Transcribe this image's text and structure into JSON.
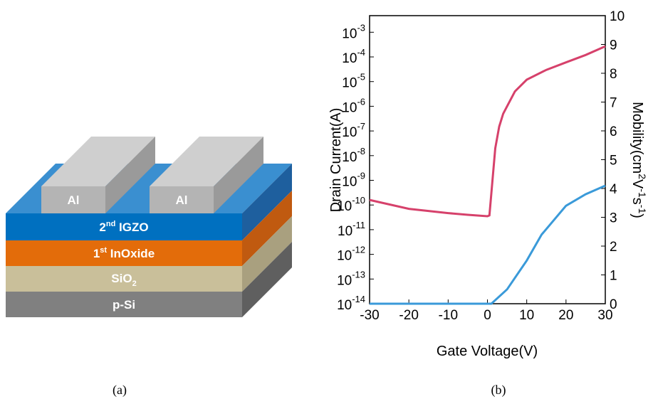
{
  "figure_a": {
    "caption": "(a)",
    "electrodes": [
      "Al",
      "Al"
    ],
    "layers": [
      {
        "main": "2",
        "sup": "nd",
        "rest": " IGZO"
      },
      {
        "main": "1",
        "sup": "st",
        "rest": " InOxide"
      },
      {
        "main": "SiO",
        "sub": "2"
      },
      {
        "main": "p-Si"
      }
    ]
  },
  "chart_data": {
    "type": "line",
    "caption": "(b)",
    "x_label": "Gate Voltage(V)",
    "y_label": "Drain Current(A)",
    "y2_label": [
      "Mobility(cm",
      "2",
      "V",
      "-1",
      "s",
      "-1",
      ")"
    ],
    "yscale": "log",
    "xlim": [
      -30,
      30
    ],
    "xticks": [
      -30,
      -20,
      -10,
      0,
      10,
      20,
      30
    ],
    "ylim": [
      1e-14,
      0.0047
    ],
    "yticks": [
      {
        "value": 1e-14,
        "label": "10",
        "exponent": "-14"
      },
      {
        "value": 1e-13,
        "label": "10",
        "exponent": "-13"
      },
      {
        "value": 1e-12,
        "label": "10",
        "exponent": "-12"
      },
      {
        "value": 1e-11,
        "label": "10",
        "exponent": "-11"
      },
      {
        "value": 1e-10,
        "label": "10",
        "exponent": "-10"
      },
      {
        "value": 1e-09,
        "label": "10",
        "exponent": "-9"
      },
      {
        "value": 1e-08,
        "label": "10",
        "exponent": "-8"
      },
      {
        "value": 1e-07,
        "label": "10",
        "exponent": "-7"
      },
      {
        "value": 1e-06,
        "label": "10",
        "exponent": "-6"
      },
      {
        "value": 1e-05,
        "label": "10",
        "exponent": "-5"
      },
      {
        "value": 0.0001,
        "label": "10",
        "exponent": "-4"
      },
      {
        "value": 0.001,
        "label": "10",
        "exponent": "-3"
      }
    ],
    "y2lim": [
      0,
      10
    ],
    "y2ticks": [
      0,
      1,
      2,
      3,
      4,
      5,
      6,
      7,
      8,
      9,
      10
    ],
    "series": [
      {
        "color": "#d6416b",
        "x": [
          -30,
          -20,
          -10,
          -5,
          0,
          0.5,
          1,
          2,
          3,
          4,
          5,
          7,
          10,
          15,
          20,
          25,
          30
        ],
        "values": [
          1.6e-10,
          7e-11,
          4.7e-11,
          4e-11,
          3.5e-11,
          3.8e-11,
          3e-10,
          2e-08,
          1.5e-07,
          5e-07,
          1e-06,
          4e-06,
          1.2e-05,
          3e-05,
          6e-05,
          0.00012,
          0.00027
        ]
      },
      {
        "color": "#3a9ad9",
        "axis": "y2",
        "x": [
          -30,
          1,
          5,
          10,
          13.8,
          20,
          25,
          30
        ],
        "values": [
          0,
          0,
          0.5,
          1.5,
          2.4,
          3.4,
          3.8,
          4.1
        ]
      }
    ]
  }
}
